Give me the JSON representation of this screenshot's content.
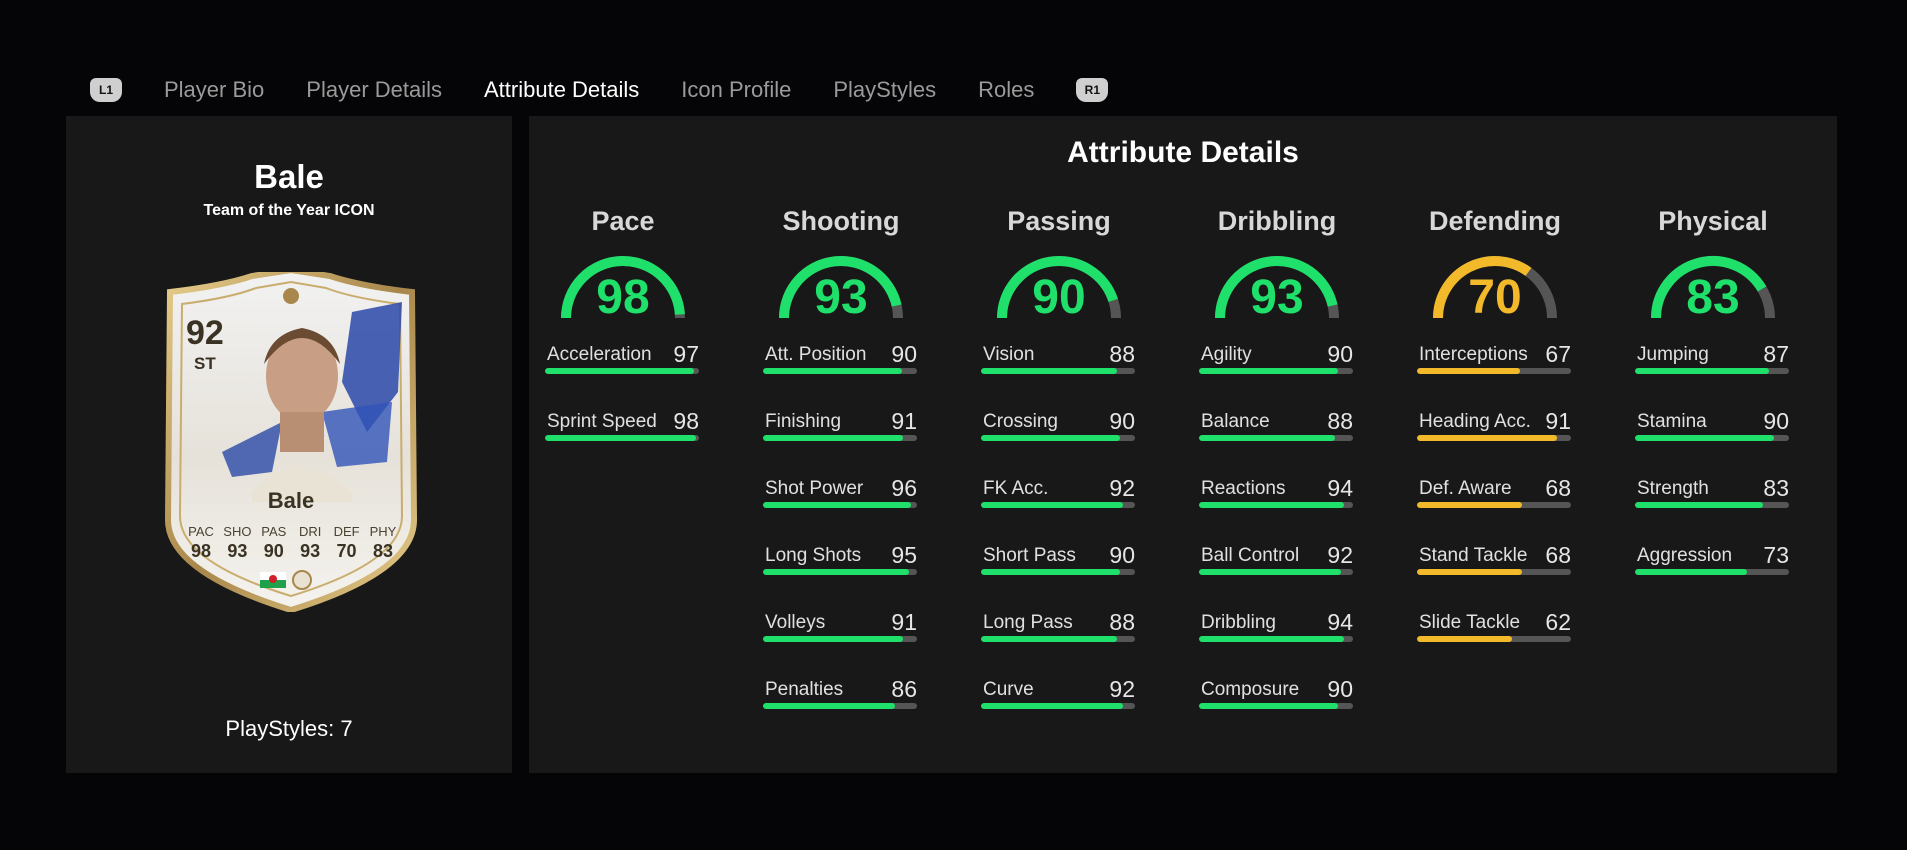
{
  "tabs": {
    "left_button": "L1",
    "right_button": "R1",
    "items": [
      "Player Bio",
      "Player Details",
      "Attribute Details",
      "Icon Profile",
      "PlayStyles",
      "Roles"
    ],
    "active_index": 2
  },
  "player": {
    "name": "Bale",
    "subtitle": "Team of the Year ICON",
    "card": {
      "rating": "92",
      "position": "ST",
      "name": "Bale",
      "stats": [
        {
          "label": "PAC",
          "value": "98"
        },
        {
          "label": "SHO",
          "value": "93"
        },
        {
          "label": "PAS",
          "value": "90"
        },
        {
          "label": "DRI",
          "value": "93"
        },
        {
          "label": "DEF",
          "value": "70"
        },
        {
          "label": "PHY",
          "value": "83"
        }
      ]
    },
    "playstyles": "PlayStyles: 7"
  },
  "colors": {
    "green": "#1fe06a",
    "yellow": "#f2b92b",
    "track": "#555555"
  },
  "attributes": {
    "title": "Attribute Details",
    "categories": [
      {
        "name": "Pace",
        "value": "98",
        "color": "green",
        "items": [
          {
            "name": "Acceleration",
            "value": "97"
          },
          {
            "name": "Sprint Speed",
            "value": "98"
          }
        ]
      },
      {
        "name": "Shooting",
        "value": "93",
        "color": "green",
        "items": [
          {
            "name": "Att. Position",
            "value": "90"
          },
          {
            "name": "Finishing",
            "value": "91"
          },
          {
            "name": "Shot Power",
            "value": "96"
          },
          {
            "name": "Long Shots",
            "value": "95"
          },
          {
            "name": "Volleys",
            "value": "91"
          },
          {
            "name": "Penalties",
            "value": "86"
          }
        ]
      },
      {
        "name": "Passing",
        "value": "90",
        "color": "green",
        "items": [
          {
            "name": "Vision",
            "value": "88"
          },
          {
            "name": "Crossing",
            "value": "90"
          },
          {
            "name": "FK Acc.",
            "value": "92"
          },
          {
            "name": "Short Pass",
            "value": "90"
          },
          {
            "name": "Long Pass",
            "value": "88"
          },
          {
            "name": "Curve",
            "value": "92"
          }
        ]
      },
      {
        "name": "Dribbling",
        "value": "93",
        "color": "green",
        "items": [
          {
            "name": "Agility",
            "value": "90"
          },
          {
            "name": "Balance",
            "value": "88"
          },
          {
            "name": "Reactions",
            "value": "94"
          },
          {
            "name": "Ball Control",
            "value": "92"
          },
          {
            "name": "Dribbling",
            "value": "94"
          },
          {
            "name": "Composure",
            "value": "90"
          }
        ]
      },
      {
        "name": "Defending",
        "value": "70",
        "color": "yellow",
        "items": [
          {
            "name": "Interceptions",
            "value": "67"
          },
          {
            "name": "Heading Acc.",
            "value": "91"
          },
          {
            "name": "Def. Aware",
            "value": "68"
          },
          {
            "name": "Stand Tackle",
            "value": "68"
          },
          {
            "name": "Slide Tackle",
            "value": "62"
          }
        ]
      },
      {
        "name": "Physical",
        "value": "83",
        "color": "green",
        "items": [
          {
            "name": "Jumping",
            "value": "87"
          },
          {
            "name": "Stamina",
            "value": "90"
          },
          {
            "name": "Strength",
            "value": "83"
          },
          {
            "name": "Aggression",
            "value": "73"
          }
        ]
      }
    ]
  }
}
